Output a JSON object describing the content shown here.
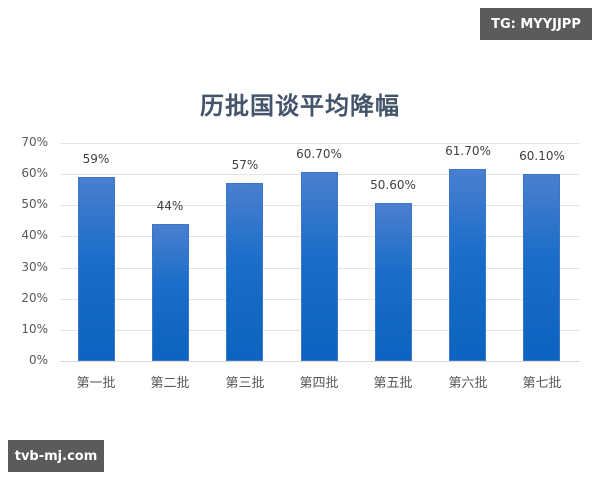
{
  "watermarks": {
    "top_right": "TG: MYYJJPP",
    "bottom_left": "tvb-mj.com"
  },
  "colors": {
    "bar": "#1a6dc9",
    "title": "#44546a",
    "gridline": "#e4e4e4",
    "badge_bg": "#5b5b5b"
  },
  "chart_data": {
    "type": "bar",
    "title": "历批国谈平均降幅",
    "xlabel": "",
    "ylabel": "",
    "categories": [
      "第一批",
      "第二批",
      "第三批",
      "第四批",
      "第五批",
      "第六批",
      "第七批"
    ],
    "values": [
      59,
      44,
      57,
      60.7,
      50.6,
      61.7,
      60.1
    ],
    "data_labels": [
      "59%",
      "44%",
      "57%",
      "60.70%",
      "50.60%",
      "61.70%",
      "60.10%"
    ],
    "yticks": [
      "0%",
      "10%",
      "20%",
      "30%",
      "40%",
      "50%",
      "60%",
      "70%"
    ],
    "ylim": [
      0,
      70
    ],
    "grid": true,
    "legend": "none"
  }
}
